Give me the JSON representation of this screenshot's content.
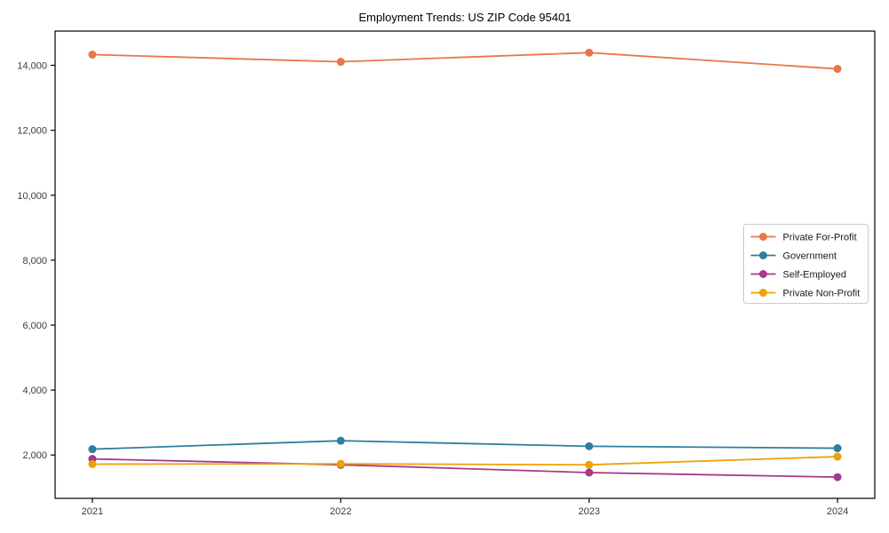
{
  "chart_data": {
    "type": "line",
    "title": "Employment Trends: US ZIP Code 95401",
    "xlabel": "",
    "ylabel": "",
    "x": [
      2021,
      2022,
      2023,
      2024
    ],
    "x_tick_labels": [
      "2021",
      "2022",
      "2023",
      "2024"
    ],
    "y_ticks": [
      2000,
      4000,
      6000,
      8000,
      10000,
      12000,
      14000
    ],
    "y_tick_labels": [
      "2,000",
      "4,000",
      "6,000",
      "8,000",
      "10,000",
      "12,000",
      "14,000"
    ],
    "xlim": [
      2020.85,
      2024.15
    ],
    "ylim": [
      666,
      15054
    ],
    "grid": false,
    "legend_position": "center right",
    "marker": "circle",
    "axis_color": "#000000",
    "tick_label_color": "#3b3b3b",
    "legend_border_color": "#cccccc",
    "series": [
      {
        "name": "Private For-Profit",
        "color": "#e8764a",
        "values": [
          14330,
          14110,
          14390,
          13890
        ]
      },
      {
        "name": "Government",
        "color": "#2f7e9f",
        "values": [
          2180,
          2440,
          2270,
          2210
        ]
      },
      {
        "name": "Self-Employed",
        "color": "#a53a8a",
        "values": [
          1880,
          1700,
          1460,
          1320
        ]
      },
      {
        "name": "Private Non-Profit",
        "color": "#f0a009",
        "values": [
          1720,
          1730,
          1700,
          1950
        ]
      }
    ]
  }
}
